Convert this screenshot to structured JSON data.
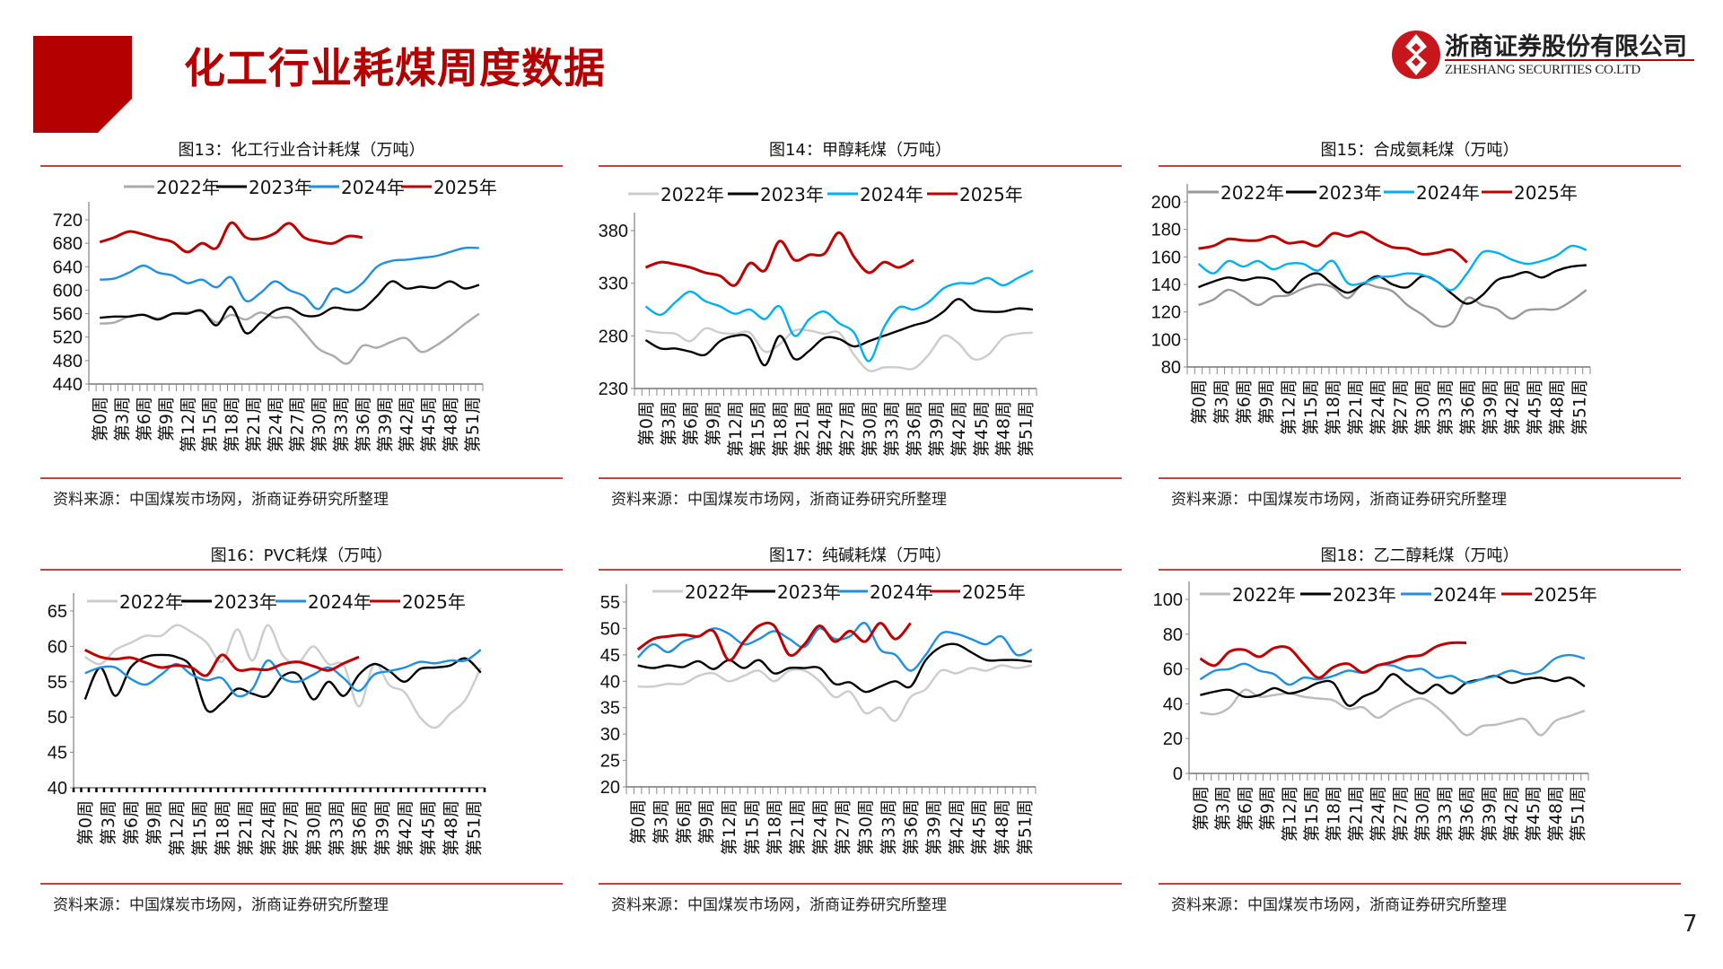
{
  "header": {
    "title": "化工行业耗煤周度数据",
    "logo_cn": "浙商证券股份有限公司",
    "logo_en": "ZHESHANG SECURITIES CO.LTD"
  },
  "colors": {
    "accent": "#b40000",
    "rule": "#c94040"
  },
  "page_number": "7",
  "chart_data": [
    {
      "type": "line",
      "title": "图13：化工行业合计耗煤（万吨）",
      "source": "资料来源：中国煤炭市场网，浙商证券研究所整理",
      "ylim": [
        440,
        720
      ],
      "yticks": [
        440,
        480,
        520,
        560,
        600,
        640,
        680,
        720
      ],
      "x_ticks": [
        "第0周",
        "第3周",
        "第6周",
        "第9周",
        "第12周",
        "第15周",
        "第18周",
        "第21周",
        "第24周",
        "第27周",
        "第30周",
        "第33周",
        "第36周",
        "第39周",
        "第42周",
        "第45周",
        "第48周",
        "第51周"
      ],
      "weeks": [
        0,
        2,
        4,
        6,
        8,
        10,
        12,
        14,
        16,
        18,
        20,
        22,
        24,
        26,
        28,
        30,
        32,
        34,
        36,
        38,
        40,
        42,
        44,
        46,
        48,
        50,
        52
      ],
      "legend": "top",
      "series": [
        {
          "name": "2022年",
          "color": "#aaaaaa",
          "values": [
            543,
            545,
            555,
            558,
            552,
            560,
            562,
            563,
            545,
            558,
            550,
            562,
            553,
            553,
            528,
            500,
            488,
            475,
            505,
            502,
            512,
            518,
            495,
            505,
            522,
            542,
            560
          ]
        },
        {
          "name": "2023年",
          "color": "#000000",
          "values": [
            553,
            555,
            555,
            558,
            550,
            560,
            560,
            565,
            540,
            572,
            527,
            545,
            565,
            570,
            557,
            557,
            570,
            567,
            568,
            590,
            615,
            603,
            606,
            604,
            615,
            603,
            609
          ]
        },
        {
          "name": "2024年",
          "color": "#1f8fe0",
          "values": [
            618,
            620,
            630,
            642,
            630,
            625,
            612,
            618,
            605,
            622,
            582,
            595,
            615,
            600,
            590,
            568,
            602,
            596,
            612,
            640,
            650,
            652,
            655,
            658,
            665,
            672,
            672
          ]
        },
        {
          "name": "2025年",
          "color": "#c00000",
          "values": [
            682,
            690,
            700,
            695,
            688,
            682,
            665,
            680,
            672,
            715,
            690,
            688,
            697,
            714,
            690,
            683,
            680,
            692,
            690
          ]
        }
      ]
    },
    {
      "type": "line",
      "title": "图14：甲醇耗煤（万吨）",
      "source": "资料来源：中国煤炭市场网，浙商证券研究所整理",
      "ylim": [
        230,
        380
      ],
      "yticks": [
        230,
        280,
        330,
        380
      ],
      "x_ticks": [
        "第0周",
        "第3周",
        "第6周",
        "第9周",
        "第12周",
        "第15周",
        "第18周",
        "第21周",
        "第24周",
        "第27周",
        "第30周",
        "第33周",
        "第36周",
        "第39周",
        "第42周",
        "第45周",
        "第48周",
        "第51周"
      ],
      "weeks": [
        0,
        2,
        4,
        6,
        8,
        10,
        12,
        14,
        16,
        18,
        20,
        22,
        24,
        26,
        28,
        30,
        32,
        34,
        36,
        38,
        40,
        42,
        44,
        46,
        48,
        50,
        52
      ],
      "legend": "top",
      "series": [
        {
          "name": "2022年",
          "color": "#cccccc",
          "values": [
            285,
            283,
            282,
            275,
            287,
            283,
            282,
            283,
            265,
            272,
            285,
            285,
            282,
            283,
            262,
            247,
            250,
            250,
            249,
            262,
            280,
            273,
            258,
            262,
            278,
            282,
            283
          ]
        },
        {
          "name": "2023年",
          "color": "#000000",
          "values": [
            276,
            268,
            268,
            265,
            262,
            275,
            280,
            278,
            252,
            280,
            258,
            266,
            278,
            277,
            270,
            275,
            280,
            285,
            290,
            294,
            303,
            315,
            305,
            303,
            303,
            306,
            305
          ]
        },
        {
          "name": "2024年",
          "color": "#00b0f0",
          "values": [
            308,
            300,
            312,
            322,
            313,
            308,
            301,
            305,
            296,
            308,
            280,
            296,
            303,
            292,
            283,
            256,
            288,
            307,
            305,
            312,
            325,
            330,
            330,
            335,
            328,
            335,
            342
          ]
        },
        {
          "name": "2025年",
          "color": "#c00000",
          "values": [
            345,
            350,
            348,
            345,
            340,
            337,
            328,
            349,
            342,
            370,
            352,
            357,
            358,
            378,
            355,
            340,
            350,
            345,
            352
          ]
        }
      ]
    },
    {
      "type": "line",
      "title": "图15：合成氨耗煤（万吨）",
      "source": "资料来源：中国煤炭市场网，浙商证券研究所整理",
      "ylim": [
        80,
        200
      ],
      "yticks": [
        80,
        100,
        120,
        140,
        160,
        180,
        200
      ],
      "x_ticks": [
        "第0周",
        "第3周",
        "第6周",
        "第9周",
        "第12周",
        "第15周",
        "第18周",
        "第21周",
        "第24周",
        "第27周",
        "第30周",
        "第33周",
        "第36周",
        "第39周",
        "第42周",
        "第45周",
        "第48周",
        "第51周"
      ],
      "weeks": [
        0,
        2,
        4,
        6,
        8,
        10,
        12,
        14,
        16,
        18,
        20,
        22,
        24,
        26,
        28,
        30,
        32,
        34,
        36,
        38,
        40,
        42,
        44,
        46,
        48,
        50,
        52
      ],
      "legend": "top",
      "series": [
        {
          "name": "2022年",
          "color": "#999999",
          "values": [
            125,
            129,
            136,
            131,
            125,
            131,
            132,
            137,
            140,
            138,
            130,
            140,
            138,
            135,
            125,
            118,
            110,
            112,
            130,
            125,
            122,
            115,
            121,
            122,
            122,
            128,
            136
          ]
        },
        {
          "name": "2023年",
          "color": "#000000",
          "values": [
            138,
            142,
            145,
            143,
            145,
            143,
            134,
            144,
            148,
            140,
            134,
            140,
            146,
            140,
            138,
            146,
            142,
            133,
            126,
            132,
            143,
            146,
            149,
            145,
            150,
            153,
            154
          ]
        },
        {
          "name": "2024年",
          "color": "#00b0f0",
          "values": [
            155,
            148,
            157,
            153,
            157,
            151,
            155,
            155,
            150,
            157,
            141,
            141,
            145,
            146,
            148,
            147,
            142,
            136,
            148,
            163,
            163,
            158,
            155,
            157,
            161,
            168,
            165
          ]
        },
        {
          "name": "2025年",
          "color": "#c00000",
          "values": [
            166,
            168,
            173,
            172,
            172,
            175,
            170,
            171,
            168,
            177,
            175,
            178,
            172,
            167,
            166,
            162,
            163,
            165,
            156
          ]
        }
      ]
    },
    {
      "type": "line",
      "title": "图16：PVC耗煤（万吨）",
      "source": "资料来源：中国煤炭市场网，浙商证券研究所整理",
      "ylim": [
        40,
        65
      ],
      "yticks": [
        40,
        45,
        50,
        55,
        60,
        65
      ],
      "x_ticks": [
        "第0周",
        "第3周",
        "第6周",
        "第9周",
        "第12周",
        "第15周",
        "第18周",
        "第21周",
        "第24周",
        "第27周",
        "第30周",
        "第33周",
        "第36周",
        "第39周",
        "第42周",
        "第45周",
        "第48周",
        "第51周"
      ],
      "weeks": [
        0,
        2,
        4,
        6,
        8,
        10,
        12,
        14,
        16,
        18,
        20,
        22,
        24,
        26,
        28,
        30,
        32,
        34,
        36,
        38,
        40,
        42,
        44,
        46,
        48,
        50,
        52
      ],
      "legend": "top",
      "series": [
        {
          "name": "2022年",
          "color": "#cccccc",
          "values": [
            58.5,
            57.5,
            59.5,
            60.5,
            61.5,
            61.5,
            63,
            62,
            60.5,
            57.8,
            62.4,
            58,
            63,
            58.7,
            57.7,
            60,
            57.5,
            57.3,
            51.5,
            57.5,
            54.5,
            53.5,
            50,
            48.5,
            50.5,
            52.5,
            57
          ]
        },
        {
          "name": "2023年",
          "color": "#000000",
          "values": [
            52.5,
            57,
            53,
            57,
            58.5,
            58.8,
            58.5,
            57,
            51,
            52,
            54,
            53.3,
            53,
            55.8,
            56,
            52.5,
            55,
            53,
            56,
            57.5,
            56.5,
            55,
            56.8,
            57,
            57.3,
            58.3,
            56.3
          ]
        },
        {
          "name": "2024年",
          "color": "#1f8fe0",
          "values": [
            56.2,
            57,
            57,
            55.4,
            54.6,
            56,
            57.5,
            56,
            55.2,
            55.5,
            53,
            54,
            58,
            55.5,
            55,
            56,
            57,
            55.5,
            53.7,
            56,
            56.5,
            57,
            57.8,
            57.6,
            58,
            58,
            59.5
          ]
        },
        {
          "name": "2025年",
          "color": "#c00000",
          "values": [
            59.5,
            58.5,
            58.2,
            58.4,
            57.7,
            57,
            57.3,
            57,
            55.9,
            58.8,
            56.7,
            56.8,
            56.7,
            57.5,
            57.8,
            57.2,
            56.6,
            57.6,
            58.5
          ]
        }
      ]
    },
    {
      "type": "line",
      "title": "图17：纯碱耗煤（万吨）",
      "source": "资料来源：中国煤炭市场网，浙商证券研究所整理",
      "ylim": [
        20,
        55
      ],
      "yticks": [
        20,
        25,
        30,
        35,
        40,
        45,
        50,
        55
      ],
      "x_ticks": [
        "第0周",
        "第3周",
        "第6周",
        "第9周",
        "第12周",
        "第15周",
        "第18周",
        "第21周",
        "第24周",
        "第27周",
        "第30周",
        "第33周",
        "第36周",
        "第39周",
        "第42周",
        "第45周",
        "第48周",
        "第51周"
      ],
      "weeks": [
        0,
        2,
        4,
        6,
        8,
        10,
        12,
        14,
        16,
        18,
        20,
        22,
        24,
        26,
        28,
        30,
        32,
        34,
        36,
        38,
        40,
        42,
        44,
        46,
        48,
        50,
        52
      ],
      "legend": "top",
      "series": [
        {
          "name": "2022年",
          "color": "#cccccc",
          "values": [
            39,
            39,
            39.5,
            39.5,
            41,
            41.5,
            40,
            41,
            42,
            40,
            42,
            42,
            40,
            37,
            38,
            34,
            35,
            32.5,
            37,
            38.5,
            42,
            41.5,
            42.5,
            42,
            43,
            42.5,
            43
          ]
        },
        {
          "name": "2023年",
          "color": "#000000",
          "values": [
            43,
            42.5,
            43,
            42.7,
            43.8,
            42.3,
            44,
            42.5,
            44,
            41.5,
            42.5,
            42.5,
            42.5,
            39.5,
            39.8,
            38,
            39,
            40,
            39,
            44,
            46.5,
            47,
            45.5,
            44,
            44,
            44,
            43.7
          ]
        },
        {
          "name": "2024年",
          "color": "#1f8fe0",
          "values": [
            44.5,
            47,
            45.5,
            47.5,
            48.5,
            50,
            49,
            47,
            48,
            49.5,
            48,
            46.5,
            50,
            48,
            48.5,
            51,
            46,
            45,
            42,
            45,
            49,
            49,
            48,
            47,
            48.5,
            45,
            46
          ]
        },
        {
          "name": "2025年",
          "color": "#c00000",
          "values": [
            46,
            48,
            48.5,
            48.8,
            48.5,
            49.5,
            44,
            47.5,
            50.5,
            50.5,
            45,
            47,
            50.5,
            47.5,
            49.5,
            47.5,
            51,
            48,
            51
          ]
        }
      ]
    },
    {
      "type": "line",
      "title": "图18：乙二醇耗煤（万吨）",
      "source": "资料来源：中国煤炭市场网，浙商证券研究所整理",
      "ylim": [
        0,
        100
      ],
      "yticks": [
        0,
        20,
        40,
        60,
        80,
        100
      ],
      "x_ticks": [
        "第0周",
        "第3周",
        "第6周",
        "第9周",
        "第12周",
        "第15周",
        "第18周",
        "第21周",
        "第24周",
        "第27周",
        "第30周",
        "第33周",
        "第36周",
        "第39周",
        "第42周",
        "第45周",
        "第48周",
        "第51周"
      ],
      "weeks": [
        0,
        2,
        4,
        6,
        8,
        10,
        12,
        14,
        16,
        18,
        20,
        22,
        24,
        26,
        28,
        30,
        32,
        34,
        36,
        38,
        40,
        42,
        44,
        46,
        48,
        50,
        52
      ],
      "legend": "top",
      "series": [
        {
          "name": "2022年",
          "color": "#bbbbbb",
          "values": [
            35,
            34,
            38,
            48,
            44,
            45,
            46,
            44,
            43,
            42,
            37,
            38,
            32,
            37,
            41,
            43,
            38,
            30,
            22,
            27,
            28,
            30,
            31,
            22,
            30,
            33,
            36
          ]
        },
        {
          "name": "2023年",
          "color": "#000000",
          "values": [
            45,
            47,
            48,
            44,
            45,
            49,
            46,
            48,
            52,
            52,
            39,
            44,
            48,
            57,
            51,
            46,
            51,
            46,
            52,
            54,
            56,
            52,
            54,
            55,
            53,
            55,
            50
          ]
        },
        {
          "name": "2024年",
          "color": "#1f8fe0",
          "values": [
            54,
            59,
            60,
            63,
            59,
            57,
            51,
            55,
            54,
            56,
            59,
            58,
            62,
            62,
            59,
            60,
            55,
            56,
            52,
            54,
            56,
            59,
            57,
            59,
            66,
            68,
            66
          ]
        },
        {
          "name": "2025年",
          "color": "#c00000",
          "values": [
            66,
            62,
            70,
            71,
            67,
            72,
            72,
            63,
            55,
            61,
            63,
            58,
            62,
            64,
            67,
            68,
            73,
            75,
            75
          ]
        }
      ]
    }
  ]
}
